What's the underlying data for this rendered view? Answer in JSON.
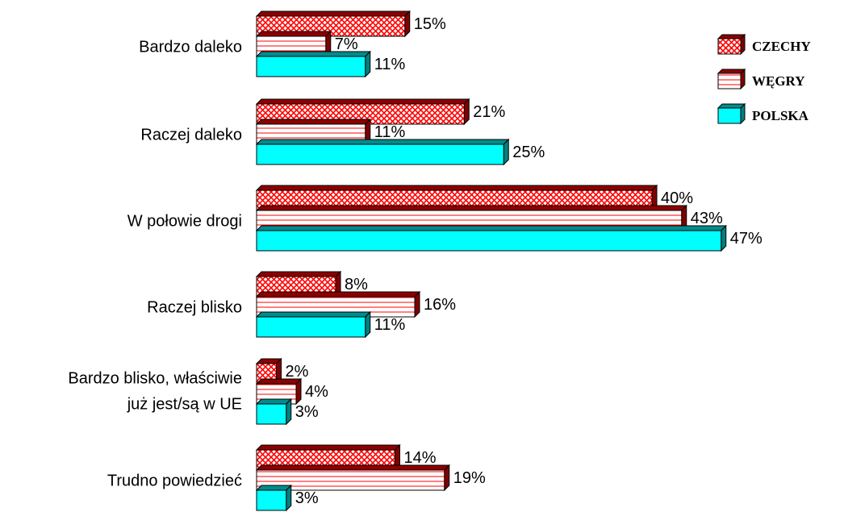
{
  "chart_data": {
    "type": "bar",
    "orientation": "horizontal",
    "style": "3d",
    "categories": [
      [
        "Bardzo daleko"
      ],
      [
        "Raczej daleko"
      ],
      [
        "W połowie drogi"
      ],
      [
        "Raczej blisko"
      ],
      [
        "Bardzo blisko, właściwie",
        "już jest/są w UE"
      ],
      [
        "Trudno powiedzieć"
      ]
    ],
    "series": [
      {
        "name": "CZECHY",
        "values": [
          15,
          21,
          40,
          8,
          2,
          14
        ],
        "color": "#ff0000",
        "pattern": "crosshatch"
      },
      {
        "name": "WĘGRY",
        "values": [
          7,
          11,
          43,
          16,
          4,
          19
        ],
        "color": "#ff0000",
        "pattern": "horizontal-lines"
      },
      {
        "name": "POLSKA",
        "values": [
          11,
          25,
          47,
          11,
          3,
          3
        ],
        "color": "#00ffff",
        "pattern": "solid"
      }
    ],
    "value_suffix": "%",
    "legend_position": "top-right",
    "grid": false
  }
}
